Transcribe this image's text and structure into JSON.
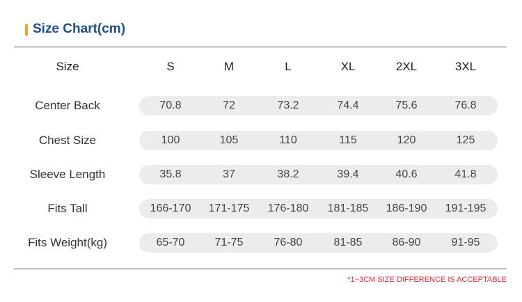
{
  "title": "Size Chart(cm)",
  "table": {
    "header": [
      "Size",
      "S",
      "M",
      "L",
      "XL",
      "2XL",
      "3XL"
    ],
    "rows": [
      [
        "Center Back",
        "70.8",
        "72",
        "73.2",
        "74.4",
        "75.6",
        "76.8"
      ],
      [
        "Chest Size",
        "100",
        "105",
        "110",
        "115",
        "120",
        "125"
      ],
      [
        "Sleeve Length",
        "35.8",
        "37",
        "38.2",
        "39.4",
        "40.6",
        "41.8"
      ],
      [
        "Fits Tall",
        "166-170",
        "171-175",
        "176-180",
        "181-185",
        "186-190",
        "191-195"
      ],
      [
        "Fits Weight(kg)",
        "65-70",
        "71-75",
        "76-80",
        "81-85",
        "86-90",
        "91-95"
      ]
    ]
  },
  "note": "*1~3CM SIZE DIFFERENCE IS ACCEPTABLE"
}
